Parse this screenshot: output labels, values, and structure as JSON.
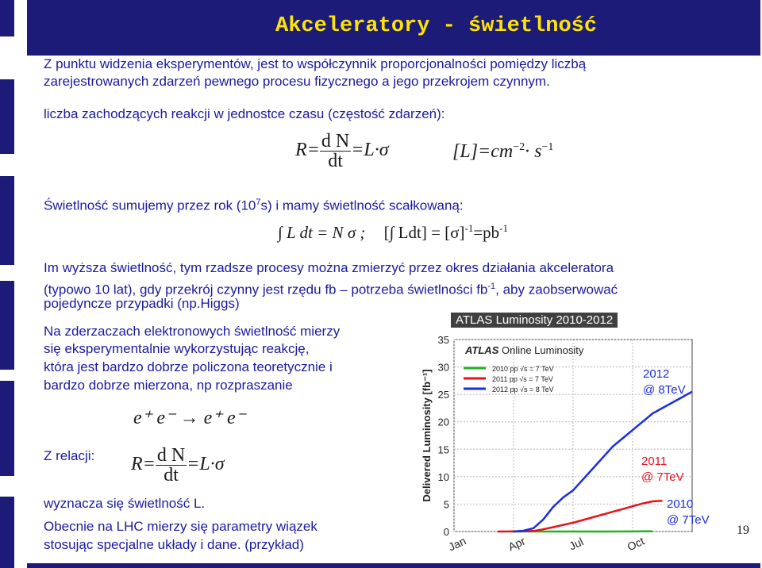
{
  "slide": {
    "title": "Akceleratory - świetlność",
    "page_number": "19",
    "intro_line1": "Z punktu widzenia eksperymentów, jest to współczynnik proporcjonalności pomiędzy liczbą",
    "intro_line2": "zarejestrowanych zdarzeń pewnego procesu fizycznego a jego przekrojem czynnym.",
    "rate_label": "liczba zachodzących reakcji w jednostce czasu (częstość zdarzeń):",
    "integrated_pre": "Świetlność sumujemy przez rok (10",
    "integrated_sup": "7",
    "integrated_post": "s)  i mamy świetlność scałkowaną:",
    "para1_line1": "Im wyższa świetlność, tym rzadsze procesy można zmierzyć przez okres działania akceleratora",
    "para1_line2_pre": "(typowo 10 lat), gdy przekrój czynny jest rzędu fb – potrzeba świetlności fb",
    "para1_line2_sup": "-1",
    "para1_line2_post": ", aby zaobserwować",
    "para1_line3": "pojedyncze przypadki (np.Higgs)",
    "para2_line1": "Na zderzaczach elektronowych świetlność mierzy",
    "para2_line2": "się eksperymentalnie wykorzystując reakcję,",
    "para2_line3": "która jest bardzo dobrze policzona teoretycznie i",
    "para2_line4": "bardzo dobrze mierzona, np rozpraszanie",
    "relation_label": "Z relacji:",
    "defines_line": "wyznacza się świetlność L.",
    "final_line1": "Obecnie na LHC mierzy się parametry wiązek",
    "final_line2": "stosując specjalne układy i dane. (przykład)"
  },
  "formulas": {
    "rate_lhs": "R=",
    "rate_num": "d N",
    "rate_den": "dt",
    "rate_rhs": "=L·σ",
    "units": "[L]=cm",
    "units_exp1": "−2",
    "units_mid": "· s",
    "units_exp2": "−1",
    "integral_left": "∫ L dt = N  σ  ;",
    "integral_right": "[∫ Ldt] = [σ]",
    "integral_exp": "-1",
    "integral_eq": "=pb",
    "integral_exp2": "-1",
    "reaction": "e⁺ e⁻ → e⁺ e⁻"
  },
  "chart_data": {
    "type": "line",
    "title": "ATLAS Luminosity 2010-2012",
    "subtitle": "ATLAS Online Luminosity",
    "ylabel": "Delivered Luminosity [fb⁻¹]",
    "ylim": [
      0,
      35
    ],
    "yticks": [
      0,
      5,
      10,
      15,
      20,
      25,
      30,
      35
    ],
    "xticks": [
      "Jan",
      "Apr",
      "Jul",
      "Oct"
    ],
    "x_domain_months": [
      0,
      12
    ],
    "grid": true,
    "legend_position": "top-left",
    "series": [
      {
        "name": "2010 pp √s = 7 TeV",
        "color": "#1fb51f",
        "annotation": "2010\n@ 7TeV",
        "points": [
          [
            2.9,
            0
          ],
          [
            4,
            0
          ],
          [
            5,
            0
          ],
          [
            6,
            0
          ],
          [
            7,
            0.001
          ],
          [
            8,
            0.004
          ],
          [
            9,
            0.02
          ],
          [
            9.5,
            0.04
          ],
          [
            10,
            0.048
          ]
        ]
      },
      {
        "name": "2011 pp √s = 7 TeV",
        "color": "#e8101a",
        "annotation": "2011\n@ 7TeV",
        "points": [
          [
            2.2,
            0
          ],
          [
            3,
            0.01
          ],
          [
            4,
            0.1
          ],
          [
            4.5,
            0.4
          ],
          [
            5,
            0.8
          ],
          [
            5.5,
            1.2
          ],
          [
            6,
            1.6
          ],
          [
            6.5,
            2.1
          ],
          [
            7,
            2.6
          ],
          [
            7.5,
            3.1
          ],
          [
            8,
            3.6
          ],
          [
            8.5,
            4.1
          ],
          [
            9,
            4.6
          ],
          [
            9.5,
            5.1
          ],
          [
            10,
            5.5
          ],
          [
            10.5,
            5.6
          ]
        ]
      },
      {
        "name": "2012 pp √s = 8 TeV",
        "color": "#1a2de0",
        "annotation": "2012\n@ 8TeV",
        "points": [
          [
            3,
            0
          ],
          [
            3.5,
            0.15
          ],
          [
            4,
            0.6
          ],
          [
            4.5,
            2.2
          ],
          [
            5,
            4.5
          ],
          [
            5.5,
            6.2
          ],
          [
            6,
            7.5
          ],
          [
            6.5,
            9.5
          ],
          [
            7,
            11.5
          ],
          [
            7.5,
            13.5
          ],
          [
            8,
            15.5
          ],
          [
            8.5,
            17
          ],
          [
            9,
            18.5
          ],
          [
            9.5,
            20
          ],
          [
            10,
            21.5
          ],
          [
            10.5,
            22.5
          ],
          [
            11,
            23.5
          ],
          [
            11.5,
            24.5
          ],
          [
            12,
            25.5
          ]
        ]
      }
    ]
  }
}
